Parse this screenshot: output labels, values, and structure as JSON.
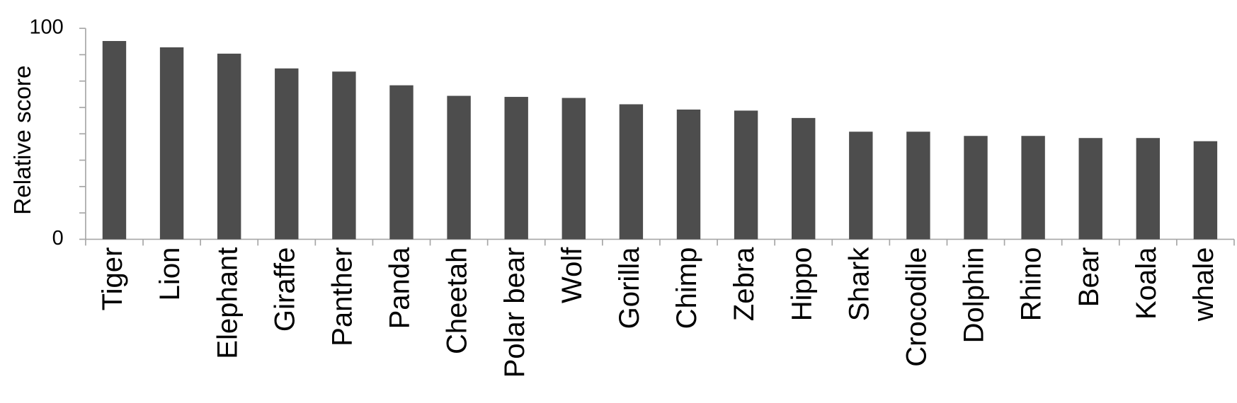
{
  "chart_data": {
    "type": "bar",
    "y_axis_label": "Relative score",
    "categories": [
      "Tiger",
      "Lion",
      "Elephant",
      "Giraffe",
      "Panther",
      "Panda",
      "Cheetah",
      "Polar bear",
      "Wolf",
      "Gorilla",
      "Chimp",
      "Zebra",
      "Hippo",
      "Shark",
      "Crocodile",
      "Dolphin",
      "Rhino",
      "Bear",
      "Koala",
      "whale"
    ],
    "values": [
      94,
      91,
      88,
      81,
      79.5,
      73,
      68,
      67.5,
      67,
      64,
      61.5,
      61,
      57.5,
      51,
      51,
      49,
      49,
      48,
      48,
      46.5
    ],
    "color": "#4d4d4d",
    "ylim": [
      0,
      100
    ],
    "yticks": [
      0,
      100
    ],
    "yminor_ticks": [
      12.5,
      25,
      37.5,
      50,
      62.5,
      75,
      87.5
    ],
    "grid": false
  }
}
